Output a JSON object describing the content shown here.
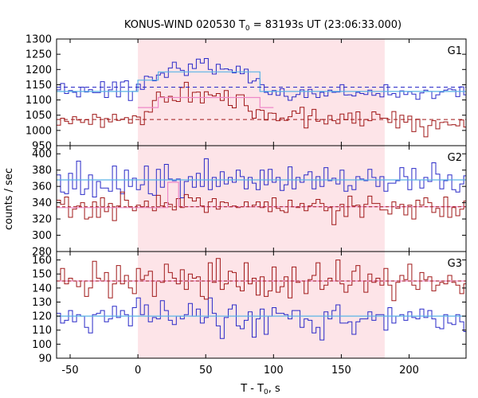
{
  "title": {
    "prefix": "KONUS-WIND 020530 T",
    "sub": "0",
    "suffix": " = 83193s UT (23:06:33.000)"
  },
  "ylabel": "counts / sec",
  "xlabel": {
    "prefix": "T - T",
    "sub": "0",
    "suffix": ", s"
  },
  "colors": {
    "blue": "#2a2ac8",
    "red": "#a01818",
    "lightblue": "#5ab4e6",
    "pink": "#ee88c8",
    "shade": "#fde4e8"
  },
  "chart_data": {
    "type": "line",
    "xlim": [
      -60,
      242
    ],
    "xticks": [
      -50,
      0,
      50,
      100,
      150,
      200
    ],
    "interval_shaded": [
      0,
      182
    ],
    "bin_width_s": 2.944,
    "panels": [
      {
        "name": "G1",
        "ylim": [
          950,
          1300
        ],
        "yticks": [
          950,
          1000,
          1050,
          1100,
          1150,
          1200,
          1250,
          1300
        ],
        "background_levels": {
          "blue": 1142,
          "red": 1036
        },
        "blue_model": [
          {
            "x0": -60,
            "x1": 0,
            "y": 1128
          },
          {
            "x0": 0,
            "x1": 15,
            "y": 1165
          },
          {
            "x0": 15,
            "x1": 90,
            "y": 1192
          },
          {
            "x0": 90,
            "x1": 130,
            "y": 1128
          },
          {
            "x0": 130,
            "x1": 242,
            "y": 1128
          }
        ],
        "red_model": [
          {
            "x0": 0,
            "x1": 15,
            "y": 1075
          },
          {
            "x0": 15,
            "x1": 90,
            "y": 1108
          },
          {
            "x0": 90,
            "x1": 100,
            "y": 1075
          }
        ],
        "blue_counts": [
          1133,
          1154,
          1121,
          1131,
          1125,
          1110,
          1142,
          1126,
          1134,
          1124,
          1124,
          1160,
          1108,
          1133,
          1159,
          1110,
          1159,
          1163,
          1098,
          1128,
          1152,
          1135,
          1178,
          1175,
          1163,
          1182,
          1188,
          1174,
          1205,
          1224,
          1204,
          1197,
          1180,
          1218,
          1203,
          1234,
          1221,
          1236,
          1200,
          1185,
          1217,
          1201,
          1202,
          1199,
          1189,
          1211,
          1186,
          1201,
          1156,
          1162,
          1170,
          1150,
          1125,
          1118,
          1131,
          1115,
          1137,
          1112,
          1099,
          1110,
          1118,
          1133,
          1108,
          1135,
          1120,
          1108,
          1125,
          1113,
          1132,
          1125,
          1126,
          1150,
          1116,
          1117,
          1113,
          1125,
          1121,
          1118,
          1132,
          1115,
          1121,
          1110,
          1150,
          1117,
          1121,
          1109,
          1130,
          1118,
          1127,
          1119,
          1102,
          1123,
          1132,
          1128,
          1105,
          1117,
          1126,
          1132,
          1136,
          1133,
          1111,
          1143,
          1117
        ],
        "red_counts": [
          1017,
          1040,
          1030,
          1022,
          1045,
          1034,
          1026,
          1035,
          1020,
          1053,
          1043,
          1010,
          1039,
          1028,
          1053,
          1033,
          1037,
          1042,
          1024,
          1048,
          1044,
          1019,
          1062,
          1060,
          1098,
          1126,
          1110,
          1093,
          1112,
          1098,
          1095,
          1141,
          1158,
          1093,
          1125,
          1126,
          1090,
          1127,
          1117,
          1113,
          1121,
          1098,
          1131,
          1082,
          1074,
          1117,
          1117,
          1081,
          1063,
          1040,
          1068,
          1066,
          1034,
          1057,
          1056,
          1032,
          1041,
          1033,
          1045,
          1064,
          1056,
          1076,
          1008,
          1048,
          1069,
          1030,
          1036,
          1021,
          1049,
          1032,
          1023,
          1054,
          1035,
          1057,
          1024,
          1061,
          1015,
          1036,
          1032,
          1061,
          1053,
          1040,
          1040,
          1026,
          1062,
          1008,
          1050,
          1027,
          1047,
          996,
          1037,
          1012,
          979,
          1016,
          1032,
          1005,
          1026,
          1028,
          1018,
          1019,
          1015,
          1034,
          1011
        ]
      },
      {
        "name": "G2",
        "ylim": [
          280,
          410
        ],
        "yticks": [
          280,
          300,
          320,
          340,
          360,
          380,
          400
        ],
        "background_levels": {
          "blue": 368,
          "red": 335
        },
        "blue_model": [
          {
            "x0": -60,
            "x1": 242,
            "y": 368
          }
        ],
        "red_model": [
          {
            "x0": -60,
            "x1": 22,
            "y": 334
          },
          {
            "x0": 22,
            "x1": 30,
            "y": 365
          },
          {
            "x0": 30,
            "x1": 242,
            "y": 335
          }
        ],
        "blue_counts": [
          374,
          353,
          351,
          376,
          357,
          391,
          350,
          357,
          374,
          347,
          366,
          358,
          358,
          354,
          385,
          357,
          351,
          380,
          360,
          370,
          356,
          362,
          385,
          351,
          349,
          381,
          359,
          387,
          369,
          367,
          369,
          346,
          366,
          372,
          359,
          376,
          360,
          394,
          356,
          371,
          360,
          378,
          363,
          371,
          365,
          380,
          372,
          357,
          371,
          364,
          356,
          380,
          362,
          381,
          365,
          371,
          355,
          362,
          384,
          357,
          371,
          365,
          374,
          378,
          357,
          372,
          360,
          383,
          367,
          370,
          363,
          380,
          354,
          361,
          356,
          372,
          369,
          367,
          381,
          371,
          360,
          372,
          354,
          364,
          364,
          367,
          383,
          372,
          356,
          382,
          368,
          358,
          371,
          366,
          389,
          375,
          357,
          367,
          374,
          356,
          353,
          363,
          373
        ],
        "red_counts": [
          343,
          338,
          347,
          322,
          332,
          336,
          340,
          320,
          322,
          341,
          322,
          346,
          329,
          339,
          318,
          336,
          353,
          343,
          335,
          330,
          337,
          335,
          342,
          334,
          330,
          349,
          336,
          340,
          338,
          331,
          345,
          334,
          350,
          346,
          342,
          346,
          336,
          328,
          341,
          345,
          332,
          341,
          340,
          335,
          336,
          334,
          335,
          341,
          335,
          337,
          341,
          334,
          341,
          329,
          346,
          333,
          330,
          328,
          343,
          335,
          334,
          339,
          330,
          336,
          339,
          344,
          339,
          330,
          334,
          313,
          330,
          338,
          323,
          348,
          336,
          337,
          322,
          338,
          348,
          339,
          339,
          331,
          331,
          326,
          341,
          333,
          338,
          325,
          337,
          320,
          343,
          337,
          346,
          340,
          328,
          333,
          323,
          347,
          322,
          334,
          324,
          332,
          342
        ]
      },
      {
        "name": "G3",
        "ylim": [
          90,
          166
        ],
        "yticks": [
          90,
          100,
          110,
          120,
          130,
          140,
          150,
          160
        ],
        "background_levels": {
          "blue": 120,
          "red": 145
        },
        "blue_model": [
          {
            "x0": -60,
            "x1": 242,
            "y": 120
          }
        ],
        "red_model": [
          {
            "x0": -60,
            "x1": 242,
            "y": 145
          }
        ],
        "blue_counts": [
          122,
          115,
          117,
          124,
          116,
          121,
          120,
          112,
          108,
          121,
          122,
          124,
          116,
          118,
          127,
          119,
          124,
          121,
          113,
          126,
          133,
          121,
          128,
          116,
          119,
          118,
          131,
          124,
          117,
          114,
          120,
          118,
          121,
          129,
          120,
          125,
          115,
          119,
          133,
          122,
          113,
          104,
          119,
          125,
          128,
          113,
          111,
          117,
          123,
          105,
          118,
          125,
          107,
          120,
          126,
          122,
          122,
          121,
          118,
          124,
          124,
          112,
          118,
          117,
          108,
          112,
          103,
          123,
          118,
          124,
          128,
          115,
          115,
          116,
          107,
          116,
          118,
          118,
          123,
          117,
          121,
          121,
          110,
          126,
          115,
          120,
          121,
          117,
          123,
          119,
          118,
          125,
          119,
          124,
          118,
          112,
          111,
          121,
          115,
          114,
          121,
          116,
          109
        ],
        "red_counts": [
          145,
          154,
          143,
          147,
          145,
          141,
          145,
          134,
          140,
          159,
          147,
          145,
          151,
          133,
          143,
          156,
          143,
          149,
          140,
          136,
          154,
          146,
          149,
          152,
          134,
          145,
          144,
          157,
          151,
          147,
          143,
          153,
          139,
          150,
          147,
          148,
          134,
          132,
          158,
          144,
          161,
          139,
          143,
          152,
          151,
          141,
          138,
          158,
          143,
          147,
          135,
          148,
          134,
          138,
          155,
          137,
          141,
          148,
          133,
          155,
          144,
          145,
          136,
          146,
          149,
          158,
          139,
          142,
          147,
          145,
          160,
          143,
          137,
          142,
          152,
          156,
          145,
          137,
          150,
          144,
          147,
          142,
          154,
          142,
          131,
          144,
          149,
          146,
          157,
          142,
          139,
          151,
          146,
          148,
          138,
          142,
          144,
          143,
          149,
          144,
          142,
          136,
          143
        ]
      }
    ]
  }
}
